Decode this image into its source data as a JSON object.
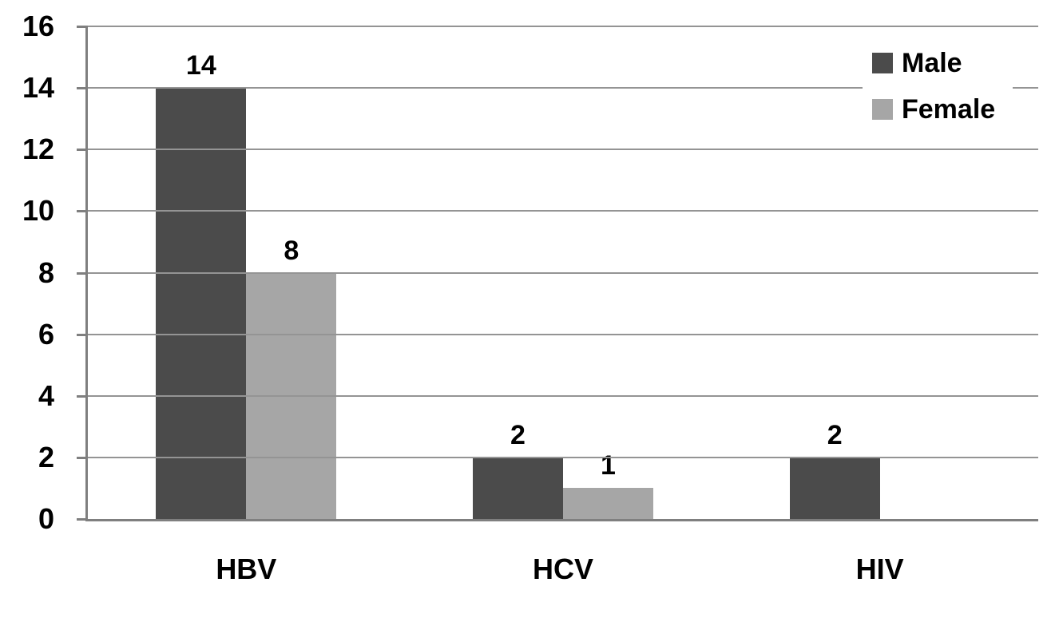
{
  "chart_data": {
    "type": "bar",
    "title": "",
    "xlabel": "",
    "ylabel": "",
    "categories": [
      "HBV",
      "HCV",
      "HIV"
    ],
    "series": [
      {
        "name": "Male",
        "color": "#4b4b4b",
        "values": [
          14,
          2,
          2
        ]
      },
      {
        "name": "Female",
        "color": "#a6a6a6",
        "values": [
          8,
          1,
          0
        ]
      }
    ],
    "yticks": [
      0,
      2,
      4,
      6,
      8,
      10,
      12,
      14,
      16
    ],
    "ylim": [
      0,
      16
    ],
    "grid": true,
    "data_labels": true,
    "legend_position": "top-right",
    "colors": {
      "gridline": "#949494",
      "axis": "#7f7f7f",
      "text": "#000000",
      "legend_background": "#ffffff",
      "background": "#ffffff"
    }
  }
}
